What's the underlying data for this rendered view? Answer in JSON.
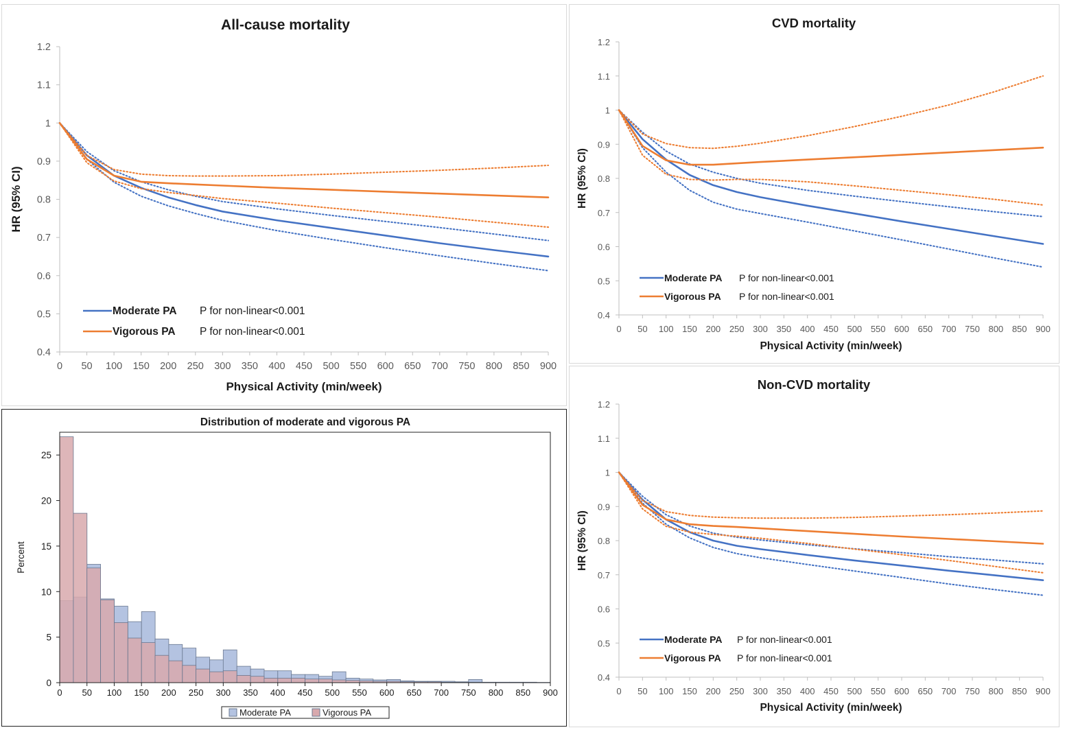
{
  "colors": {
    "moderate": "#4472C4",
    "vigorous": "#ED7D31",
    "hist_moderate_fill": "#B4C3E1",
    "hist_vigorous_fill": "#D8A9AD",
    "hist_border": "#6A7890"
  },
  "chart_data": [
    {
      "id": "all-cause",
      "type": "line",
      "title": "All-cause mortality",
      "xlabel": "Physical Activity (min/week)",
      "ylabel": "HR (95% CI)",
      "xlim": [
        0,
        900
      ],
      "ylim": [
        0.4,
        1.2
      ],
      "xticks": [
        0,
        50,
        100,
        150,
        200,
        250,
        300,
        350,
        400,
        450,
        500,
        550,
        600,
        650,
        700,
        750,
        800,
        850,
        900
      ],
      "yticks": [
        0.4,
        0.5,
        0.6,
        0.7,
        0.8,
        0.9,
        1.0,
        1.1,
        1.2
      ],
      "ytick_labels": [
        "0.4",
        "0.5",
        "0.6",
        "0.7",
        "0.8",
        "0.9",
        "1",
        "1.1",
        "1.2"
      ],
      "grid": false,
      "legend_position": "bottom-left",
      "x": [
        0,
        50,
        100,
        150,
        200,
        250,
        300,
        400,
        500,
        600,
        700,
        800,
        900
      ],
      "series": [
        {
          "name": "Moderate PA",
          "role": "estimate",
          "group": "moderate",
          "p_value_text": "P for non-linear<0.001",
          "y": [
            1.0,
            0.915,
            0.862,
            0.83,
            0.805,
            0.785,
            0.768,
            0.745,
            0.725,
            0.705,
            0.685,
            0.667,
            0.65
          ]
        },
        {
          "role": "upper",
          "group": "moderate",
          "y": [
            1.0,
            0.925,
            0.875,
            0.846,
            0.825,
            0.808,
            0.794,
            0.775,
            0.758,
            0.742,
            0.726,
            0.709,
            0.692
          ]
        },
        {
          "role": "lower",
          "group": "moderate",
          "y": [
            1.0,
            0.905,
            0.845,
            0.808,
            0.783,
            0.763,
            0.745,
            0.718,
            0.695,
            0.673,
            0.652,
            0.632,
            0.613
          ]
        },
        {
          "name": "Vigorous PA",
          "role": "estimate",
          "group": "vigorous",
          "p_value_text": "P for non-linear<0.001",
          "y": [
            1.0,
            0.905,
            0.862,
            0.846,
            0.842,
            0.839,
            0.836,
            0.83,
            0.825,
            0.82,
            0.815,
            0.81,
            0.805
          ]
        },
        {
          "role": "upper",
          "group": "vigorous",
          "y": [
            1.0,
            0.915,
            0.878,
            0.866,
            0.862,
            0.861,
            0.861,
            0.862,
            0.866,
            0.871,
            0.876,
            0.882,
            0.889
          ]
        },
        {
          "role": "lower",
          "group": "vigorous",
          "y": [
            1.0,
            0.896,
            0.848,
            0.828,
            0.818,
            0.81,
            0.802,
            0.79,
            0.777,
            0.765,
            0.753,
            0.74,
            0.727
          ]
        }
      ]
    },
    {
      "id": "cvd",
      "type": "line",
      "title": "CVD mortality",
      "xlabel": "Physical Activity (min/week)",
      "ylabel": "HR (95% CI)",
      "xlim": [
        0,
        900
      ],
      "ylim": [
        0.4,
        1.2
      ],
      "xticks": [
        0,
        50,
        100,
        150,
        200,
        250,
        300,
        350,
        400,
        450,
        500,
        550,
        600,
        650,
        700,
        750,
        800,
        850,
        900
      ],
      "yticks": [
        0.4,
        0.5,
        0.6,
        0.7,
        0.8,
        0.9,
        1.0,
        1.1,
        1.2
      ],
      "ytick_labels": [
        "0.4",
        "0.5",
        "0.6",
        "0.7",
        "0.8",
        "0.9",
        "1",
        "1.1",
        "1.2"
      ],
      "grid": false,
      "legend_position": "bottom-left",
      "x": [
        0,
        50,
        100,
        150,
        200,
        250,
        300,
        400,
        500,
        600,
        700,
        800,
        900
      ],
      "series": [
        {
          "name": "Moderate PA",
          "role": "estimate",
          "group": "moderate",
          "p_value_text": "P for non-linear<0.001",
          "y": [
            1.0,
            0.915,
            0.855,
            0.81,
            0.78,
            0.76,
            0.745,
            0.72,
            0.697,
            0.674,
            0.652,
            0.63,
            0.608
          ]
        },
        {
          "role": "upper",
          "group": "moderate",
          "y": [
            1.0,
            0.935,
            0.88,
            0.842,
            0.818,
            0.8,
            0.786,
            0.765,
            0.748,
            0.732,
            0.717,
            0.702,
            0.688
          ]
        },
        {
          "role": "lower",
          "group": "moderate",
          "y": [
            1.0,
            0.89,
            0.818,
            0.765,
            0.73,
            0.71,
            0.697,
            0.672,
            0.646,
            0.62,
            0.593,
            0.566,
            0.54
          ]
        },
        {
          "name": "Vigorous PA",
          "role": "estimate",
          "group": "vigorous",
          "p_value_text": "P for non-linear<0.001",
          "y": [
            1.0,
            0.895,
            0.853,
            0.84,
            0.84,
            0.844,
            0.848,
            0.855,
            0.862,
            0.869,
            0.876,
            0.883,
            0.89
          ]
        },
        {
          "role": "upper",
          "group": "vigorous",
          "y": [
            1.0,
            0.93,
            0.902,
            0.89,
            0.888,
            0.894,
            0.903,
            0.925,
            0.952,
            0.982,
            1.015,
            1.055,
            1.1
          ]
        },
        {
          "role": "lower",
          "group": "vigorous",
          "y": [
            1.0,
            0.868,
            0.812,
            0.797,
            0.795,
            0.797,
            0.797,
            0.79,
            0.778,
            0.765,
            0.752,
            0.738,
            0.722
          ]
        }
      ]
    },
    {
      "id": "non-cvd",
      "type": "line",
      "title": "Non-CVD mortality",
      "xlabel": "Physical Activity (min/week)",
      "ylabel": "HR (95% CI)",
      "xlim": [
        0,
        900
      ],
      "ylim": [
        0.4,
        1.2
      ],
      "xticks": [
        0,
        50,
        100,
        150,
        200,
        250,
        300,
        350,
        400,
        450,
        500,
        550,
        600,
        650,
        700,
        750,
        800,
        850,
        900
      ],
      "yticks": [
        0.4,
        0.5,
        0.6,
        0.7,
        0.8,
        0.9,
        1.0,
        1.1,
        1.2
      ],
      "ytick_labels": [
        "0.4",
        "0.5",
        "0.6",
        "0.7",
        "0.8",
        "0.9",
        "1",
        "1.1",
        "1.2"
      ],
      "grid": false,
      "legend_position": "bottom-left",
      "x": [
        0,
        50,
        100,
        150,
        200,
        250,
        300,
        400,
        500,
        600,
        700,
        800,
        900
      ],
      "series": [
        {
          "name": "Moderate PA",
          "role": "estimate",
          "group": "moderate",
          "p_value_text": "P for non-linear<0.001",
          "y": [
            1.0,
            0.92,
            0.862,
            0.825,
            0.8,
            0.785,
            0.775,
            0.758,
            0.742,
            0.727,
            0.712,
            0.698,
            0.684
          ]
        },
        {
          "role": "upper",
          "group": "moderate",
          "y": [
            1.0,
            0.93,
            0.876,
            0.843,
            0.822,
            0.81,
            0.802,
            0.788,
            0.776,
            0.765,
            0.753,
            0.743,
            0.732
          ]
        },
        {
          "role": "lower",
          "group": "moderate",
          "y": [
            1.0,
            0.91,
            0.848,
            0.808,
            0.78,
            0.762,
            0.75,
            0.73,
            0.711,
            0.692,
            0.673,
            0.656,
            0.64
          ]
        },
        {
          "name": "Vigorous PA",
          "role": "estimate",
          "group": "vigorous",
          "p_value_text": "P for non-linear<0.001",
          "y": [
            1.0,
            0.905,
            0.862,
            0.848,
            0.843,
            0.84,
            0.836,
            0.828,
            0.82,
            0.812,
            0.805,
            0.798,
            0.791
          ]
        },
        {
          "role": "upper",
          "group": "vigorous",
          "y": [
            1.0,
            0.918,
            0.885,
            0.874,
            0.869,
            0.867,
            0.866,
            0.866,
            0.868,
            0.872,
            0.876,
            0.881,
            0.887
          ]
        },
        {
          "role": "lower",
          "group": "vigorous",
          "y": [
            1.0,
            0.893,
            0.842,
            0.825,
            0.818,
            0.813,
            0.807,
            0.792,
            0.775,
            0.759,
            0.742,
            0.724,
            0.706
          ]
        }
      ]
    },
    {
      "id": "distribution",
      "type": "bar",
      "subtype": "histogram-overlay",
      "title": "Distribution of moderate and vigorous PA",
      "xlabel": "",
      "ylabel": "Percent",
      "xlim": [
        0,
        900
      ],
      "ylim": [
        0,
        27.5
      ],
      "bin_width": 25,
      "xticks": [
        0,
        50,
        100,
        150,
        200,
        250,
        300,
        350,
        400,
        450,
        500,
        550,
        600,
        650,
        700,
        750,
        800,
        850,
        900
      ],
      "yticks": [
        0,
        5,
        10,
        15,
        20,
        25
      ],
      "grid": false,
      "legend_position": "bottom-center",
      "bin_starts": [
        0,
        25,
        50,
        75,
        100,
        125,
        150,
        175,
        200,
        225,
        250,
        275,
        300,
        325,
        350,
        375,
        400,
        425,
        450,
        475,
        500,
        525,
        550,
        575,
        600,
        625,
        650,
        675,
        700,
        725,
        750,
        775,
        800,
        825,
        850,
        875
      ],
      "series": [
        {
          "name": "Moderate PA",
          "values": [
            9.0,
            9.4,
            13.0,
            9.2,
            8.4,
            6.7,
            7.8,
            4.8,
            4.2,
            3.8,
            2.8,
            2.5,
            3.6,
            1.8,
            1.5,
            1.3,
            1.3,
            0.9,
            0.9,
            0.7,
            1.2,
            0.5,
            0.4,
            0.3,
            0.35,
            0.2,
            0.15,
            0.15,
            0.15,
            0.1,
            0.35,
            0.05,
            0.05,
            0.05,
            0.05,
            0.03
          ]
        },
        {
          "name": "Vigorous PA",
          "values": [
            27.0,
            18.6,
            12.6,
            9.1,
            6.6,
            4.9,
            4.4,
            3.0,
            2.4,
            1.9,
            1.5,
            1.2,
            1.3,
            0.8,
            0.7,
            0.5,
            0.5,
            0.5,
            0.4,
            0.4,
            0.3,
            0.25,
            0.2,
            0.15,
            0.15,
            0.1,
            0.1,
            0.1,
            0.05,
            0.05,
            0.05,
            0.03,
            0.03,
            0.02,
            0.02,
            0.01
          ]
        }
      ]
    }
  ]
}
